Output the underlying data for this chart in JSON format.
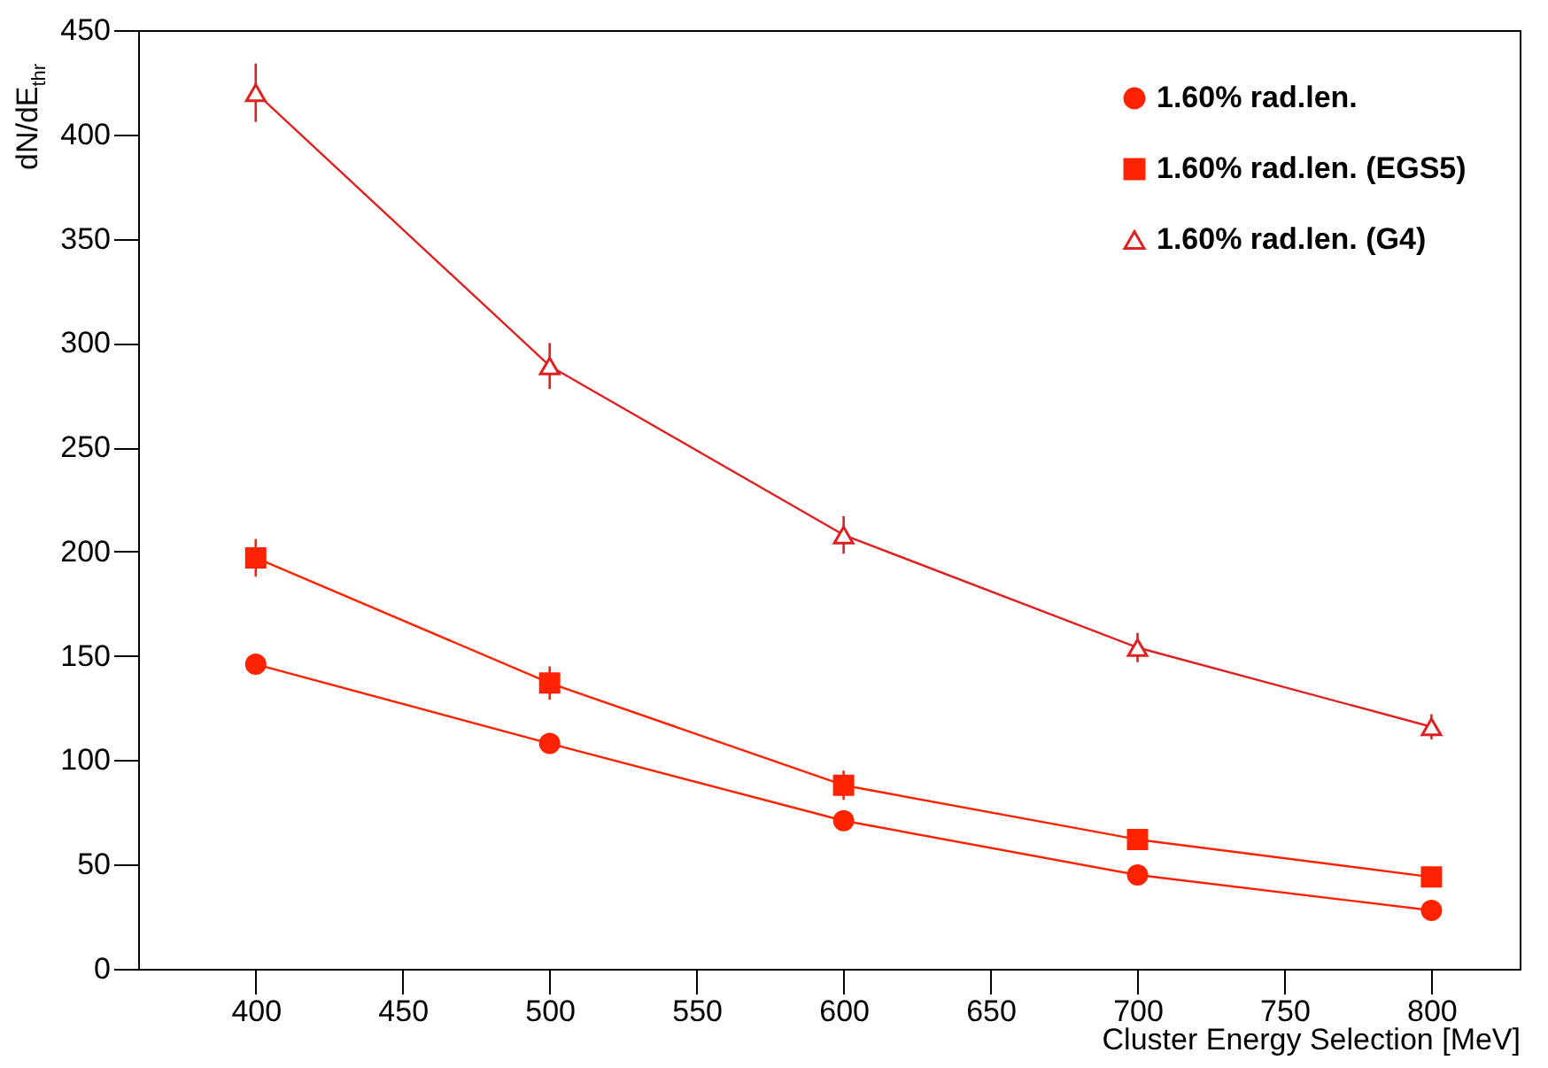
{
  "chart_data": {
    "type": "line",
    "xlabel": "Cluster Energy Selection [MeV]",
    "ylabel": "dN/dE$_{thr}$",
    "x": [
      400,
      500,
      600,
      700,
      800
    ],
    "xlim": [
      360,
      830
    ],
    "xticks": [
      400,
      450,
      500,
      550,
      600,
      650,
      700,
      750,
      800
    ],
    "ylim": [
      0,
      450
    ],
    "yticks": [
      0,
      50,
      100,
      150,
      200,
      250,
      300,
      350,
      400,
      450
    ],
    "legend": "top right",
    "line_style": "solid",
    "series": [
      {
        "name": "1.60% rad.len.",
        "color": "#ff2200",
        "marker": "circle",
        "values": [
          146,
          108,
          71,
          45,
          28
        ],
        "errors": [
          3,
          3,
          3,
          2,
          2
        ]
      },
      {
        "name": "1.60% rad.len. (EGS5)",
        "color": "#ff2200",
        "marker": "square",
        "values": [
          197,
          137,
          88,
          62,
          44
        ],
        "errors": [
          9,
          8,
          7,
          5,
          3
        ]
      },
      {
        "name": "1.60% rad.len. (G4)",
        "color": "#e02020",
        "marker": "triangle",
        "values": [
          420,
          289,
          208,
          154,
          116
        ],
        "errors": [
          14,
          11,
          9,
          7,
          6
        ]
      }
    ]
  }
}
